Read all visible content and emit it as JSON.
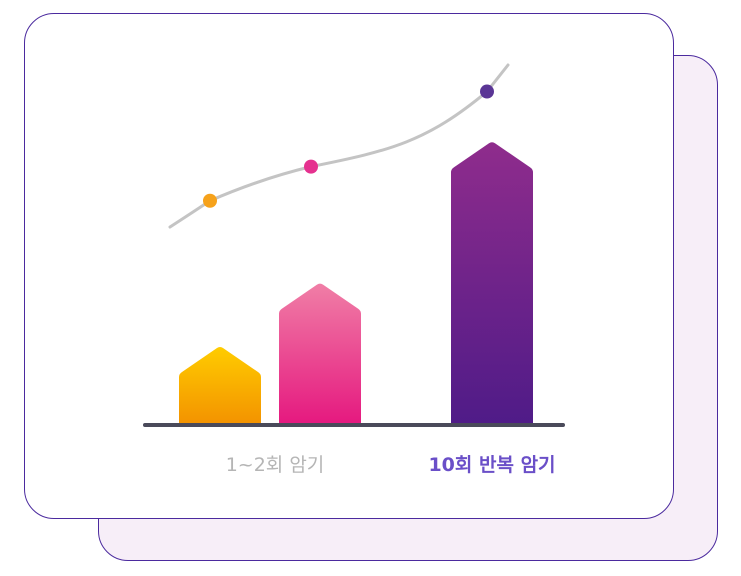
{
  "chart_data": {
    "type": "bar",
    "categories": [
      "1~2회 암기",
      "",
      "10회 반복 암기"
    ],
    "values": [
      80,
      145,
      290
    ],
    "ylim": [
      0,
      300
    ],
    "grid": false,
    "legend": "none",
    "trend": {
      "values": [
        230,
        265,
        342
      ]
    },
    "colors": {
      "bar_1": [
        "#ffcc00",
        "#f39200"
      ],
      "bar_2": [
        "#f07ea6",
        "#e5187f"
      ],
      "bar_3": [
        "#8f2c8c",
        "#4f1b88"
      ],
      "dot_1": "#f6a21b",
      "dot_2": "#e5318f",
      "dot_3": "#5a3595",
      "trend_line": "#c4c4c4",
      "baseline": "#4a4a5a"
    }
  }
}
